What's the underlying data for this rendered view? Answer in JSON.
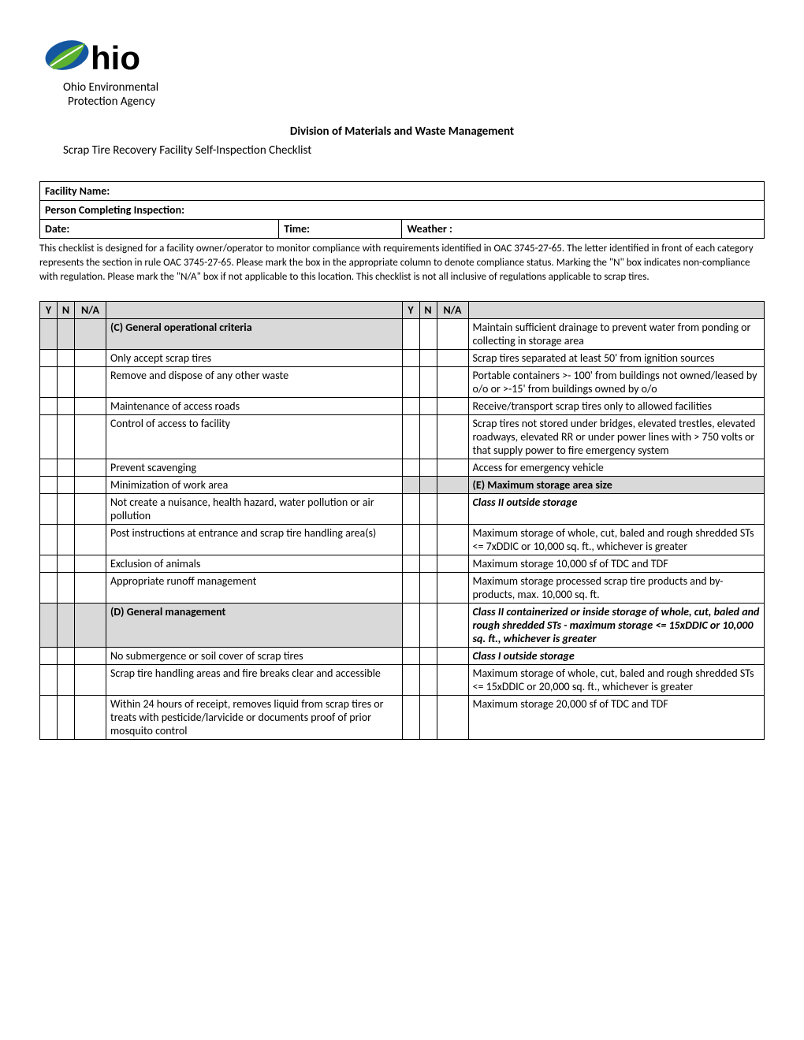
{
  "logo": {
    "agency_line1": "Ohio Environmental",
    "agency_line2": "Protection Agency"
  },
  "division_title": "Division of Materials and Waste Management",
  "subtitle": "Scrap Tire Recovery Facility Self-Inspection Checklist",
  "info": {
    "facility_name_label": "Facility Name:",
    "person_label": "Person Completing Inspection:",
    "date_label": "Date:",
    "time_label": "Time:",
    "weather_label": "Weather :"
  },
  "intro": "This checklist is designed for a facility owner/operator to monitor compliance with requirements identified in OAC 3745-27-65.  The letter identified in front of each category represents the section in rule OAC 3745-27-65.  Please mark the box in the appropriate column to denote compliance status.  Marking the \"N\" box indicates non-compliance with regulation.  Please mark the \"N/A\" box if not applicable to this location.  This checklist is not all inclusive of regulations applicable to scrap tires.",
  "headers": {
    "y": "Y",
    "n": "N",
    "na": "N/A"
  },
  "rows": [
    {
      "left": {
        "text": "(C) General operational criteria",
        "style": "section-head"
      },
      "right": {
        "text": "Maintain sufficient drainage to prevent water from ponding or collecting in storage area"
      }
    },
    {
      "left": {
        "text": "Only accept scrap tires"
      },
      "right": {
        "text": "Scrap tires separated at least 50' from ignition sources"
      }
    },
    {
      "left": {
        "text": "Remove and dispose of any other waste"
      },
      "right": {
        "text": "Portable containers >- 100' from buildings not owned/leased by o/o or >-15' from buildings owned by o/o"
      }
    },
    {
      "left": {
        "text": "Maintenance of access roads"
      },
      "right": {
        "text": "Receive/transport scrap tires only to allowed facilities"
      }
    },
    {
      "left": {
        "text": "Control of access to facility"
      },
      "right": {
        "text": "Scrap tires not stored under bridges, elevated trestles, elevated roadways, elevated RR or under power lines with > 750 volts or that supply power to fire emergency system",
        "style": "small-text"
      }
    },
    {
      "left": {
        "text": "Prevent scavenging"
      },
      "right": {
        "text": "Access for emergency vehicle"
      }
    },
    {
      "left": {
        "text": "Minimization of work area"
      },
      "right": {
        "text": "(E) Maximum storage area size",
        "style": "section-head"
      }
    },
    {
      "left": {
        "text": "Not create a nuisance, health hazard, water pollution or air pollution"
      },
      "right": {
        "text": "Class II outside storage",
        "style": "bold-ital"
      }
    },
    {
      "left": {
        "text": "Post instructions at entrance and scrap tire handling area(s)"
      },
      "right": {
        "text": "Maximum storage of whole, cut, baled and rough shredded STs <= 7xDDIC or 10,000 sq. ft., whichever is greater"
      }
    },
    {
      "left": {
        "text": "Exclusion of animals"
      },
      "right": {
        "text": "Maximum storage 10,000 sf of TDC and TDF"
      }
    },
    {
      "left": {
        "text": "Appropriate runoff management"
      },
      "right": {
        "text": "Maximum storage processed scrap tire products and by-products, max. 10,000 sq. ft."
      }
    },
    {
      "left": {
        "text": "(D) General management",
        "style": "section-head"
      },
      "right": {
        "text": "Class II containerized or inside storage of whole, cut, baled and rough shredded STs - maximum storage <= 15xDDIC or 10,000 sq. ft., whichever is greater",
        "style": "bold-ital small-text"
      }
    },
    {
      "left": {
        "text": "No submergence or soil cover of scrap tires"
      },
      "right": {
        "text": "Class I outside storage",
        "style": "bold-ital"
      }
    },
    {
      "left": {
        "text": "Scrap tire handling areas and fire breaks clear and accessible"
      },
      "right": {
        "text": "Maximum storage of whole, cut, baled and rough shredded STs <= 15xDDIC or 20,000 sq. ft., whichever is greater"
      }
    },
    {
      "left": {
        "text": "Within 24 hours of receipt, removes liquid from scrap tires or treats with pesticide/larvicide or documents proof of prior mosquito control"
      },
      "right": {
        "text": "Maximum storage 20,000 sf of TDC and TDF"
      }
    }
  ]
}
